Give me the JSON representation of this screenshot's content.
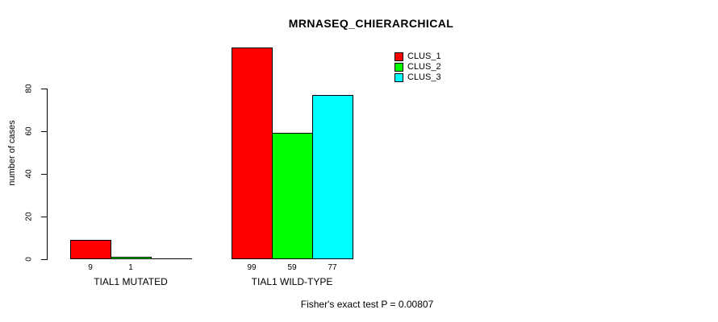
{
  "chart_data": {
    "type": "bar",
    "title": "MRNASEQ_CHIERARCHICAL",
    "ylabel": "number of cases",
    "xlabel": "",
    "categories": [
      "TIAL1 MUTATED",
      "TIAL1 WILD-TYPE"
    ],
    "series": [
      {
        "name": "CLUS_1",
        "color": "#FF0000",
        "values": [
          9,
          99
        ]
      },
      {
        "name": "CLUS_2",
        "color": "#00FF00",
        "values": [
          1,
          59
        ]
      },
      {
        "name": "CLUS_3",
        "color": "#00FFFF",
        "values": [
          0,
          77
        ]
      }
    ],
    "bar_value_labels": [
      [
        "9",
        "1",
        ""
      ],
      [
        "99",
        "59",
        "77"
      ]
    ],
    "yticks": [
      0,
      20,
      40,
      60,
      80
    ],
    "ylim": [
      0,
      105
    ],
    "grid": false,
    "legend_position": "top-right",
    "annotation": "Fisher's exact test P = 0.00807"
  },
  "colors": {
    "background": "#FFFFFF",
    "text": "#000000",
    "bar_border": "#000000"
  }
}
